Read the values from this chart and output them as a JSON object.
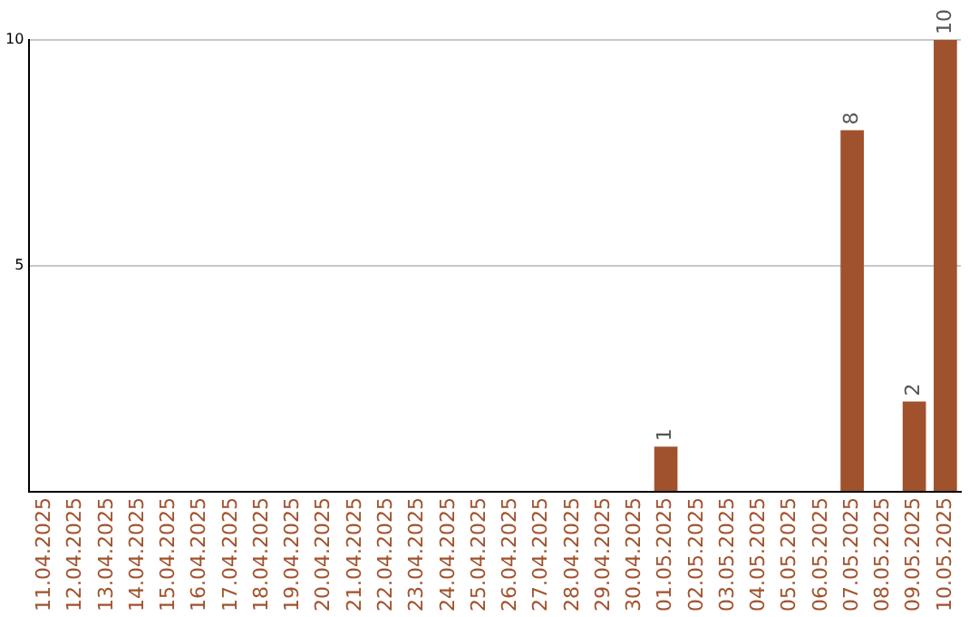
{
  "chart_data": {
    "type": "bar",
    "categories": [
      "11.04.2025",
      "12.04.2025",
      "13.04.2025",
      "14.04.2025",
      "15.04.2025",
      "16.04.2025",
      "17.04.2025",
      "18.04.2025",
      "19.04.2025",
      "20.04.2025",
      "21.04.2025",
      "22.04.2025",
      "23.04.2025",
      "24.04.2025",
      "25.04.2025",
      "26.04.2025",
      "27.04.2025",
      "28.04.2025",
      "29.04.2025",
      "30.04.2025",
      "01.05.2025",
      "02.05.2025",
      "03.05.2025",
      "04.05.2025",
      "05.05.2025",
      "06.05.2025",
      "07.05.2025",
      "08.05.2025",
      "09.05.2025",
      "10.05.2025"
    ],
    "values": [
      0,
      0,
      0,
      0,
      0,
      0,
      0,
      0,
      0,
      0,
      0,
      0,
      0,
      0,
      0,
      0,
      0,
      0,
      0,
      0,
      1,
      0,
      0,
      0,
      0,
      0,
      8,
      0,
      2,
      10
    ],
    "value_labels": [
      null,
      null,
      null,
      null,
      null,
      null,
      null,
      null,
      null,
      null,
      null,
      null,
      null,
      null,
      null,
      null,
      null,
      null,
      null,
      null,
      "1",
      null,
      null,
      null,
      null,
      null,
      "8",
      null,
      "2",
      "10"
    ],
    "color": "#a0522d",
    "ylim": [
      0,
      10
    ],
    "yticks": [
      {
        "value": 0,
        "label": null
      },
      5,
      10
    ],
    "grid": "y",
    "legend": false
  }
}
